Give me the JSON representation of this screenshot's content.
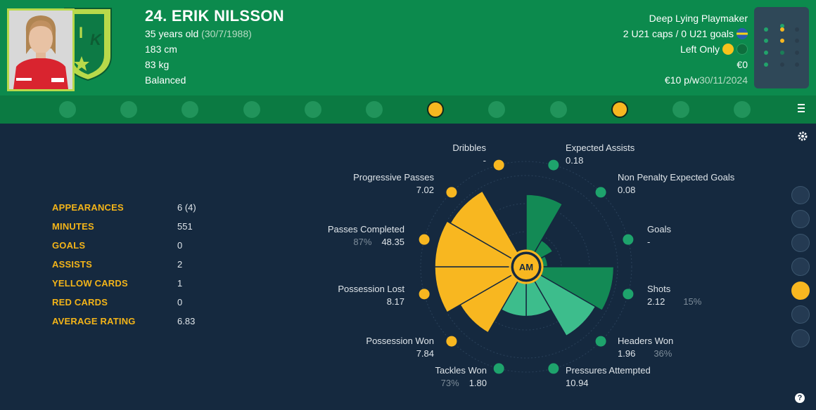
{
  "player": {
    "name": "24. ERIK NILSSON",
    "age": "35 years old",
    "dob": "(30/7/1988)",
    "height": "183 cm",
    "weight": "83 kg",
    "personality": "Balanced",
    "role": "Deep Lying Playmaker",
    "u21": "2 U21 caps / 0 U21 goals",
    "foot": "Left Only",
    "value": "€0",
    "wage": "€10 p/w",
    "contract_end": "30/11/2024"
  },
  "crest_letters": [
    "I",
    "K"
  ],
  "colors": {
    "header_green": "#0c8a4d",
    "accent_yellow": "#f8b720",
    "possession_green": "#138a55",
    "light_green": "#3dbd8c",
    "background": "#15293f"
  },
  "tabs": [
    {
      "icon": "anchor-icon",
      "active": false
    },
    {
      "icon": "shield-card-icon",
      "active": false
    },
    {
      "icon": "bird-icon",
      "active": false
    },
    {
      "icon": "hammer-sickle-icon",
      "active": false
    },
    {
      "icon": "eye-icon",
      "active": false
    },
    {
      "icon": "rocket-icon",
      "active": false
    },
    {
      "icon": "helmet-icon",
      "active": true
    },
    {
      "icon": "cog-burst-icon",
      "active": false
    },
    {
      "icon": "fox-head-icon",
      "active": false
    },
    {
      "icon": "wizard-hat-icon",
      "active": true
    },
    {
      "icon": "crosshair-icon",
      "active": false
    },
    {
      "icon": "wolf-icon",
      "active": false
    }
  ],
  "stats": [
    {
      "label": "APPEARANCES",
      "value": "6 (4)"
    },
    {
      "label": "MINUTES",
      "value": "551"
    },
    {
      "label": "GOALS",
      "value": "0"
    },
    {
      "label": "ASSISTS",
      "value": "2"
    },
    {
      "label": "YELLOW CARDS",
      "value": "1"
    },
    {
      "label": "RED CARDS",
      "value": "0"
    },
    {
      "label": "AVERAGE RATING",
      "value": "6.83"
    }
  ],
  "chart_data": {
    "type": "polar-bar",
    "center_label": "AM",
    "series": [
      {
        "label": "Expected Assists",
        "value": "0.18",
        "pct": "",
        "group": "green",
        "level": 0.75
      },
      {
        "label": "Non Penalty Expected Goals",
        "value": "0.08",
        "pct": "",
        "group": "green",
        "level": 0.2
      },
      {
        "label": "Goals",
        "value": "-",
        "pct": "",
        "group": "green",
        "level": 0.08
      },
      {
        "label": "Shots",
        "value": "2.12",
        "pct": "15%",
        "group": "green",
        "level": 0.95
      },
      {
        "label": "Headers Won",
        "value": "1.96",
        "pct": "36%",
        "group": "light-green",
        "level": 0.85
      },
      {
        "label": "Pressures Attempted",
        "value": "10.94",
        "pct": "",
        "group": "light-green",
        "level": 0.45
      },
      {
        "label": "Tackles Won",
        "value": "1.80",
        "pct": "73%",
        "group": "light-green",
        "level": 0.45
      },
      {
        "label": "Possession Won",
        "value": "7.84",
        "pct": "",
        "group": "yellow",
        "level": 0.8
      },
      {
        "label": "Possession Lost",
        "value": "8.17",
        "pct": "",
        "group": "yellow",
        "level": 1.0
      },
      {
        "label": "Passes Completed",
        "value": "48.35",
        "pct": "87%",
        "group": "yellow",
        "level": 1.0
      },
      {
        "label": "Progressive Passes",
        "value": "7.02",
        "pct": "",
        "group": "yellow",
        "level": 0.95
      },
      {
        "label": "Dribbles",
        "value": "-",
        "pct": "",
        "group": "yellow",
        "level": 0.0
      }
    ]
  },
  "sidebar": [
    {
      "icon": "slide-tackle-icon",
      "active": false
    },
    {
      "icon": "player-standing-icon",
      "active": false
    },
    {
      "icon": "diving-header-icon",
      "active": false
    },
    {
      "icon": "kicking-player-icon",
      "active": false
    },
    {
      "icon": "dribbling-player-icon",
      "active": true
    },
    {
      "icon": "running-player-icon",
      "active": false
    },
    {
      "icon": "profile-circle-icon",
      "active": false
    }
  ]
}
